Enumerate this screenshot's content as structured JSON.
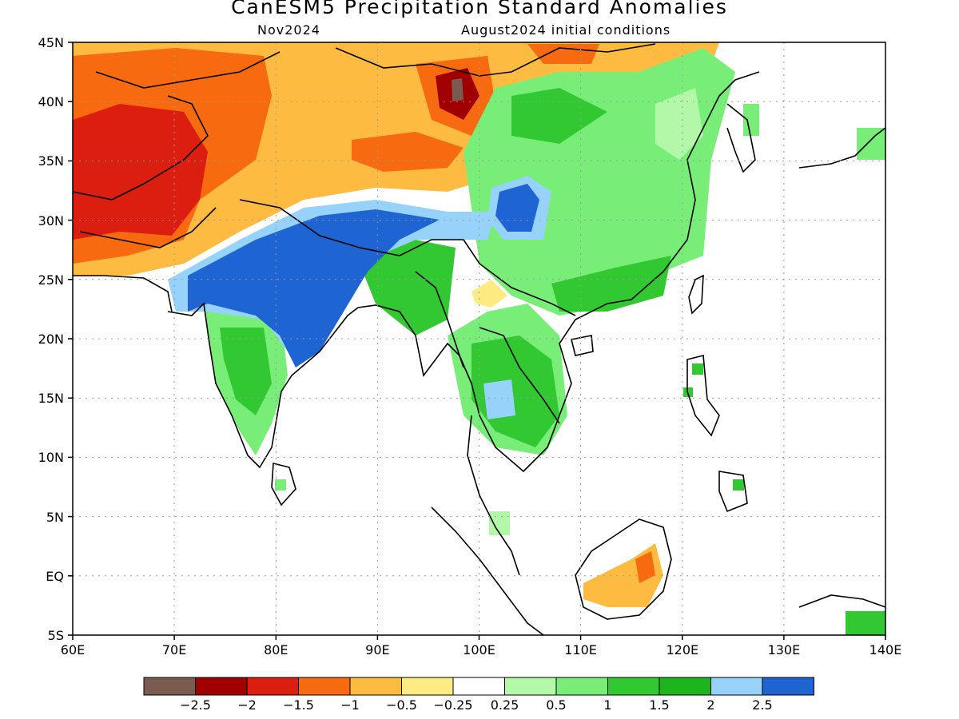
{
  "title": "CanESM5 Precipitation Standard Anomalies",
  "subtitle_left": "Nov2024",
  "subtitle_right": "August2024 initial conditions",
  "lat_labels": [
    "45N",
    "40N",
    "35N",
    "30N",
    "25N",
    "20N",
    "15N",
    "10N",
    "5N",
    "EQ",
    "5S"
  ],
  "lon_labels": [
    "60E",
    "70E",
    "80E",
    "90E",
    "100E",
    "110E",
    "120E",
    "130E",
    "140E"
  ],
  "legend": {
    "colors": [
      "#7b5a50",
      "#a00000",
      "#dc1e10",
      "#f86a10",
      "#fdbb42",
      "#feec82",
      "#ffffff",
      "#b2f8a8",
      "#78ee78",
      "#32c832",
      "#1eb41e",
      "#96d2fa",
      "#1e64d2"
    ],
    "labels": [
      "−2.5",
      "−2",
      "−1.5",
      "−1",
      "−0.5",
      "−0.25",
      "0.25",
      "0.5",
      "1",
      "1.5",
      "2",
      "2.5"
    ]
  },
  "map_extent": {
    "lon": [
      60,
      140
    ],
    "lat": [
      -5,
      45
    ]
  }
}
